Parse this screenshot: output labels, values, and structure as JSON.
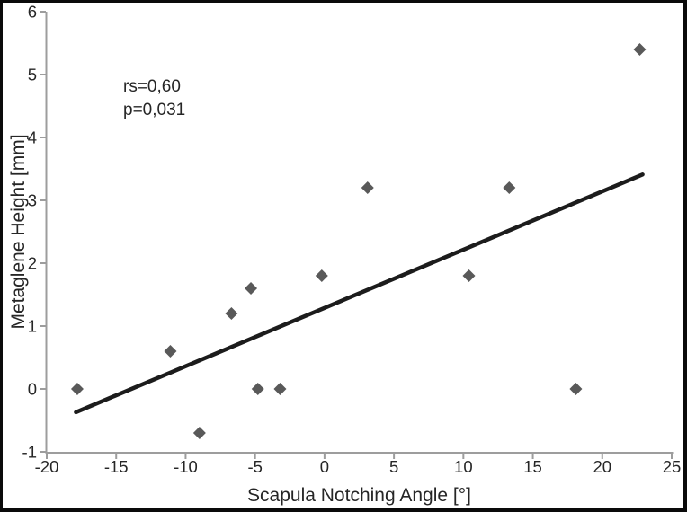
{
  "chart_data": {
    "type": "scatter",
    "title": "",
    "xlabel": "Scapula Notching Angle [°]",
    "ylabel": "Metaglene Height [mm]",
    "xlim": [
      -20,
      25
    ],
    "ylim": [
      -1,
      6
    ],
    "x_ticks": [
      -20,
      -15,
      -10,
      -5,
      0,
      5,
      10,
      15,
      20,
      25
    ],
    "y_ticks": [
      -1,
      0,
      1,
      2,
      3,
      4,
      5,
      6
    ],
    "grid": false,
    "legend": "none",
    "marker": "diamond",
    "points": [
      {
        "x": -17.8,
        "y": 0
      },
      {
        "x": -11.1,
        "y": 0.6
      },
      {
        "x": -9.0,
        "y": -0.7
      },
      {
        "x": -6.7,
        "y": 1.2
      },
      {
        "x": -5.3,
        "y": 1.6
      },
      {
        "x": -4.8,
        "y": 0
      },
      {
        "x": -3.2,
        "y": 0
      },
      {
        "x": -0.2,
        "y": 1.8
      },
      {
        "x": 3.1,
        "y": 3.2
      },
      {
        "x": 10.4,
        "y": 1.8
      },
      {
        "x": 13.3,
        "y": 3.2
      },
      {
        "x": 18.1,
        "y": 0
      },
      {
        "x": 22.7,
        "y": 5.4
      }
    ],
    "trendline": {
      "x1": -17.9,
      "y1": -0.37,
      "x2": 22.9,
      "y2": 3.41
    },
    "annotation": {
      "rs_label": "rs=0,60",
      "p_label": "p=0,031"
    },
    "colors": {
      "marker": "#595959",
      "trendline": "#1c1c1c",
      "axis": "#9d9d9d",
      "text": "#262626",
      "border": "#0a0a0a",
      "background": "#ffffff"
    }
  }
}
